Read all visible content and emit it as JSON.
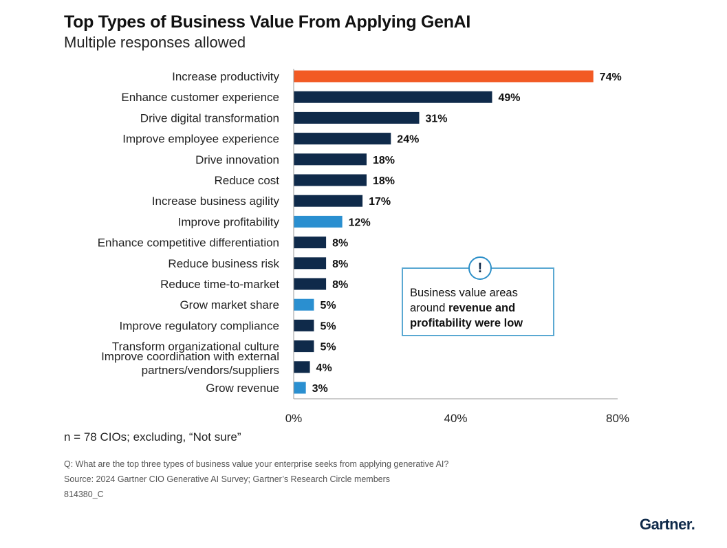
{
  "chart_data": {
    "type": "bar",
    "orientation": "horizontal",
    "title": "Top Types of Business Value From Applying GenAI",
    "subtitle": "Multiple responses allowed",
    "categories": [
      "Increase productivity",
      "Enhance customer experience",
      "Drive digital transformation",
      "Improve employee experience",
      "Drive innovation",
      "Reduce cost",
      "Increase business agility",
      "Improve profitability",
      "Enhance competitive differentiation",
      "Reduce business risk",
      "Reduce time-to-market",
      "Grow market share",
      "Improve regulatory compliance",
      "Transform organizational culture",
      "Improve coordination with external partners/vendors/suppliers",
      "Grow revenue"
    ],
    "category_lines": [
      [
        "Increase productivity"
      ],
      [
        "Enhance customer experience"
      ],
      [
        "Drive digital transformation"
      ],
      [
        "Improve employee experience"
      ],
      [
        "Drive innovation"
      ],
      [
        "Reduce cost"
      ],
      [
        "Increase business agility"
      ],
      [
        "Improve profitability"
      ],
      [
        "Enhance competitive differentiation"
      ],
      [
        "Reduce business risk"
      ],
      [
        "Reduce time-to-market"
      ],
      [
        "Grow market share"
      ],
      [
        "Improve regulatory compliance"
      ],
      [
        "Transform organizational culture"
      ],
      [
        "Improve coordination with external",
        "partners/vendors/suppliers"
      ],
      [
        "Grow revenue"
      ]
    ],
    "values": [
      74,
      49,
      31,
      24,
      18,
      18,
      17,
      12,
      8,
      8,
      8,
      5,
      5,
      5,
      4,
      3
    ],
    "value_labels": [
      "74%",
      "49%",
      "31%",
      "24%",
      "18%",
      "18%",
      "17%",
      "12%",
      "8%",
      "8%",
      "8%",
      "5%",
      "5%",
      "5%",
      "4%",
      "3%"
    ],
    "bar_colors": [
      "#f25a24",
      "#0f2a4a",
      "#0f2a4a",
      "#0f2a4a",
      "#0f2a4a",
      "#0f2a4a",
      "#0f2a4a",
      "#2a8fd0",
      "#0f2a4a",
      "#0f2a4a",
      "#0f2a4a",
      "#2a8fd0",
      "#0f2a4a",
      "#0f2a4a",
      "#0f2a4a",
      "#2a8fd0"
    ],
    "xlim": [
      0,
      80
    ],
    "xticks": [
      0,
      40,
      80
    ],
    "xtick_labels": [
      "0%",
      "40%",
      "80%"
    ],
    "xlabel": "",
    "ylabel": "",
    "grid": false,
    "legend": "none"
  },
  "callout": {
    "icon": "exclamation-circle-icon",
    "text_plain": "Business value areas around ",
    "text_bold": "revenue and profitability were low"
  },
  "notes": {
    "sample": "n = 78 CIOs; excluding, “Not sure”",
    "question": "Q: What are the top three types of business value your enterprise seeks from applying generative AI?",
    "source": "Source: 2024 Gartner CIO Generative AI Survey; Gartner’s Research Circle members",
    "id": "814380_C"
  },
  "brand": "Gartner.",
  "colors": {
    "accent_orange": "#f25a24",
    "navy": "#0f2a4a",
    "highlight_blue": "#2a8fd0",
    "callout_border": "#5aa8d2"
  }
}
